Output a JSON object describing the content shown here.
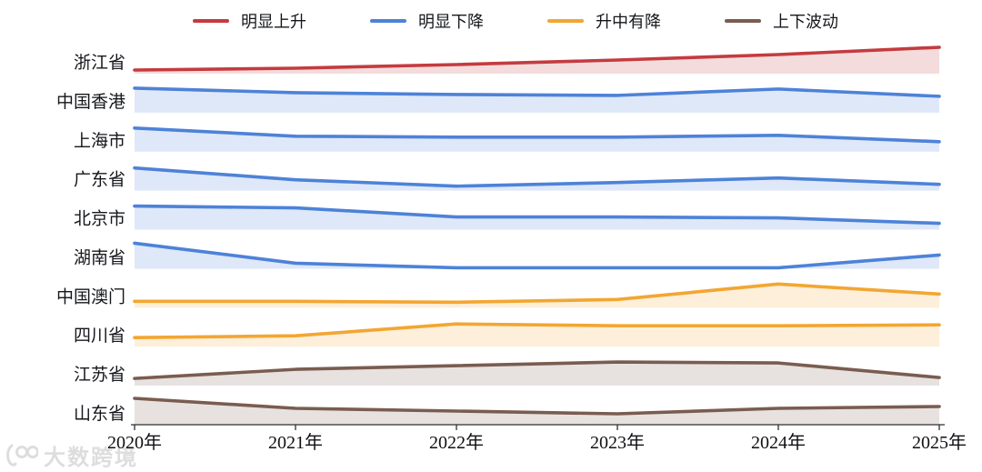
{
  "legend": {
    "items": [
      {
        "label": "明显上升",
        "color": "#c43b3f"
      },
      {
        "label": "明显下降",
        "color": "#4d82d8"
      },
      {
        "label": "升中有降",
        "color": "#f2a632"
      },
      {
        "label": "上下波动",
        "color": "#7a5c50"
      }
    ]
  },
  "chart_data": {
    "type": "area",
    "subtype": "ridgeline",
    "title": "",
    "x": [
      "2020年",
      "2021年",
      "2022年",
      "2023年",
      "2024年",
      "2025年"
    ],
    "categories": [
      "浙江省",
      "中国香港",
      "上海市",
      "广东省",
      "北京市",
      "湖南省",
      "中国澳门",
      "四川省",
      "江苏省",
      "山东省"
    ],
    "series": [
      {
        "name": "浙江省",
        "trend": "明显上升",
        "color": "#c43b3f",
        "values": [
          4,
          6,
          10,
          15,
          21,
          29
        ]
      },
      {
        "name": "中国香港",
        "trend": "明显下降",
        "color": "#4d82d8",
        "values": [
          27,
          22,
          20,
          19,
          26,
          18
        ]
      },
      {
        "name": "上海市",
        "trend": "明显下降",
        "color": "#4d82d8",
        "values": [
          26,
          17,
          16,
          16,
          18,
          11
        ]
      },
      {
        "name": "广东省",
        "trend": "明显下降",
        "color": "#4d82d8",
        "values": [
          25,
          12,
          5,
          9,
          14,
          7
        ]
      },
      {
        "name": "北京市",
        "trend": "明显下降",
        "color": "#4d82d8",
        "values": [
          26,
          24,
          14,
          14,
          13,
          7
        ]
      },
      {
        "name": "湖南省",
        "trend": "明显下降",
        "color": "#4d82d8",
        "values": [
          28,
          6,
          1,
          1,
          1,
          15
        ]
      },
      {
        "name": "中国澳门",
        "trend": "升中有降",
        "color": "#f2a632",
        "values": [
          7,
          7,
          6,
          9,
          26,
          15
        ]
      },
      {
        "name": "四川省",
        "trend": "升中有降",
        "color": "#f2a632",
        "values": [
          10,
          12,
          25,
          23,
          23,
          24
        ]
      },
      {
        "name": "江苏省",
        "trend": "上下波动",
        "color": "#7a5c50",
        "values": [
          8,
          18,
          22,
          26,
          25,
          9
        ]
      },
      {
        "name": "山东省",
        "trend": "上下波动",
        "color": "#7a5c50",
        "values": [
          29,
          18,
          15,
          12,
          18,
          20
        ]
      }
    ],
    "ylim": [
      0,
      30
    ],
    "grid": false,
    "legend_position": "top",
    "axis_color": "#2f2f2f",
    "label_color": "#15171c",
    "fill_opacity": 0.18
  },
  "watermark": {
    "text": "大数跨境",
    "logo": "100-logo"
  }
}
